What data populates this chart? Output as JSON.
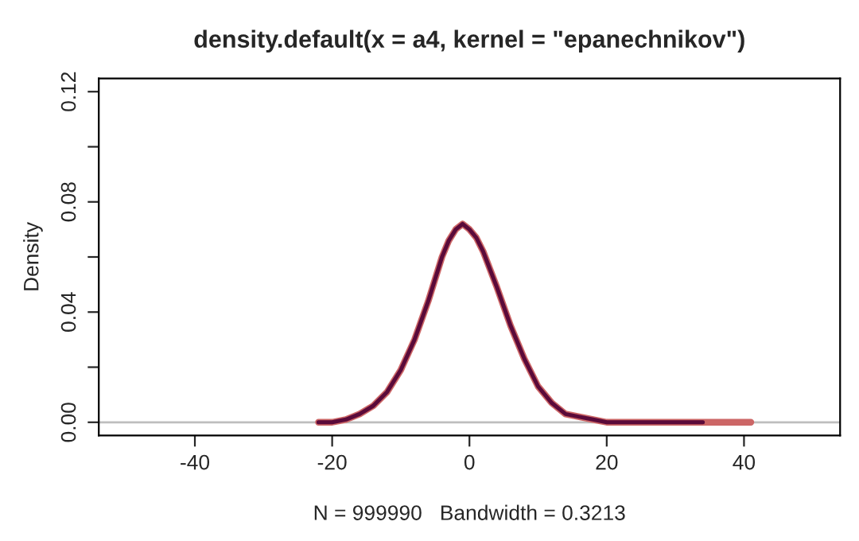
{
  "chart_data": {
    "type": "line",
    "title": "density.default(x = a4, kernel = \"epanechnikov\")",
    "xlabel": "N = 999990   Bandwidth = 0.3213",
    "ylabel": "Density",
    "series": [
      {
        "color": "#cc6666",
        "x": [
          -22,
          -20,
          -18,
          -16,
          -14,
          -12,
          -10,
          -8,
          -6,
          -4,
          -3,
          -2,
          -1,
          0,
          1,
          2,
          4,
          6,
          8,
          10,
          12,
          14,
          16,
          18,
          20,
          22,
          26,
          30,
          34,
          38,
          41
        ],
        "values": [
          0,
          0.0,
          0.001,
          0.003,
          0.006,
          0.011,
          0.019,
          0.03,
          0.044,
          0.06,
          0.066,
          0.07,
          0.072,
          0.07,
          0.067,
          0.062,
          0.049,
          0.035,
          0.023,
          0.013,
          0.007,
          0.003,
          0.002,
          0.001,
          0.0,
          0,
          0,
          0,
          0,
          0,
          0
        ]
      },
      {
        "color": "#5a0a3a",
        "x": [
          -22,
          -20,
          -18,
          -16,
          -14,
          -12,
          -10,
          -8,
          -6,
          -4,
          -3,
          -2,
          -1,
          0,
          1,
          2,
          4,
          6,
          8,
          10,
          12,
          14,
          16,
          18,
          20,
          22,
          26,
          30,
          34
        ],
        "values": [
          0,
          0.0,
          0.001,
          0.003,
          0.006,
          0.011,
          0.019,
          0.03,
          0.044,
          0.06,
          0.066,
          0.07,
          0.072,
          0.07,
          0.067,
          0.062,
          0.049,
          0.035,
          0.023,
          0.013,
          0.007,
          0.003,
          0.002,
          0.001,
          0.0,
          0,
          0,
          0,
          0
        ]
      }
    ],
    "xlim": [
      -54,
      54
    ],
    "ylim": [
      -0.0048,
      0.1248
    ],
    "xticks": [
      -40,
      -20,
      0,
      20,
      40
    ],
    "yticks": [
      {
        "value": 0,
        "label": "0.00"
      },
      {
        "value": 0.02,
        "label": null
      },
      {
        "value": 0.04,
        "label": "0.04"
      },
      {
        "value": 0.06,
        "label": null
      },
      {
        "value": 0.08,
        "label": "0.08"
      },
      {
        "value": 0.1,
        "label": null
      },
      {
        "value": 0.12,
        "label": "0.12"
      }
    ],
    "ref_lines": [
      {
        "axis": "y",
        "value": 0,
        "color": "#bebebe"
      }
    ],
    "grid": false,
    "legend": false
  }
}
